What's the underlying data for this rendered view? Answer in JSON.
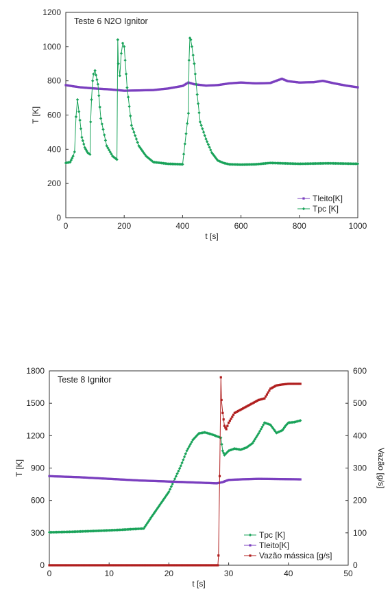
{
  "chart_data": [
    {
      "type": "line",
      "title": "Teste 6 N2O Ignitor",
      "xlabel": "t [s]",
      "ylabel": "T [K]",
      "xlim": [
        0,
        1000
      ],
      "ylim": [
        0,
        1200
      ],
      "xticks": [
        "0",
        "200",
        "400",
        "600",
        "800",
        "1000"
      ],
      "yticks": [
        "0",
        "200",
        "400",
        "600",
        "800",
        "1000",
        "1200"
      ],
      "legend_position": "bottom-right",
      "grid": false,
      "series": [
        {
          "name": "Tleito[K]",
          "color": "#7a3fbf",
          "marker": "square",
          "x": [
            0,
            25,
            50,
            100,
            150,
            200,
            250,
            300,
            350,
            400,
            420,
            440,
            480,
            520,
            560,
            600,
            650,
            700,
            740,
            760,
            800,
            850,
            880,
            920,
            960,
            1000
          ],
          "y": [
            775,
            768,
            762,
            755,
            750,
            742,
            744,
            746,
            755,
            770,
            790,
            780,
            772,
            775,
            785,
            790,
            785,
            787,
            812,
            798,
            790,
            792,
            800,
            785,
            772,
            762
          ]
        },
        {
          "name": "Tpc [K]",
          "color": "#1aa35a",
          "marker": "diamond",
          "x": [
            0,
            15,
            25,
            30,
            35,
            40,
            45,
            55,
            65,
            75,
            83,
            85,
            88,
            92,
            95,
            100,
            110,
            120,
            140,
            160,
            175,
            178,
            180,
            185,
            190,
            195,
            200,
            210,
            225,
            250,
            275,
            300,
            350,
            400,
            420,
            422,
            425,
            428,
            432,
            440,
            450,
            460,
            480,
            500,
            520,
            540,
            560,
            600,
            650,
            700,
            800,
            900,
            1000
          ],
          "y": [
            320,
            325,
            360,
            385,
            590,
            690,
            620,
            470,
            410,
            380,
            370,
            560,
            690,
            800,
            840,
            860,
            780,
            580,
            420,
            360,
            340,
            1040,
            900,
            830,
            960,
            1020,
            1000,
            760,
            540,
            420,
            360,
            325,
            315,
            312,
            610,
            920,
            1050,
            1040,
            1000,
            900,
            720,
            560,
            460,
            380,
            335,
            320,
            312,
            310,
            312,
            320,
            315,
            318,
            315
          ]
        }
      ]
    },
    {
      "type": "line",
      "title": "Teste 8 Ignitor",
      "xlabel": "t [s]",
      "ylabel": "T [K]",
      "y2label": "Vazão [g/s]",
      "xlim": [
        0,
        50
      ],
      "ylim": [
        0,
        1800
      ],
      "y2lim": [
        0,
        600
      ],
      "xticks": [
        "0",
        "10",
        "20",
        "30",
        "40",
        "50"
      ],
      "yticks": [
        "0",
        "300",
        "600",
        "900",
        "1200",
        "1500",
        "1800"
      ],
      "y2ticks": [
        "0",
        "100",
        "200",
        "300",
        "400",
        "500",
        "600"
      ],
      "legend_position": "bottom-right",
      "grid": false,
      "series": [
        {
          "name": "Tpc [K]",
          "axis": "left",
          "color": "#1aa35a",
          "marker": "diamond",
          "x": [
            0,
            4,
            8,
            12,
            15.8,
            17,
            18.5,
            20,
            21,
            22,
            23,
            24,
            25,
            26,
            27,
            28,
            28.7,
            29,
            29.3,
            30,
            31,
            32,
            33,
            34,
            35,
            36,
            37,
            38,
            39,
            39.5,
            40,
            41,
            42
          ],
          "y": [
            305,
            310,
            318,
            328,
            340,
            440,
            560,
            680,
            800,
            920,
            1060,
            1160,
            1220,
            1230,
            1215,
            1195,
            1180,
            1060,
            1020,
            1060,
            1080,
            1070,
            1090,
            1130,
            1220,
            1320,
            1300,
            1225,
            1250,
            1290,
            1320,
            1325,
            1340
          ]
        },
        {
          "name": "Tleito[K]",
          "axis": "left",
          "color": "#7a3fbf",
          "marker": "square",
          "x": [
            0,
            5,
            10,
            15,
            20,
            25,
            28,
            29,
            30,
            32,
            35,
            38,
            42
          ],
          "y": [
            825,
            815,
            800,
            785,
            775,
            765,
            758,
            770,
            790,
            795,
            800,
            798,
            795
          ]
        },
        {
          "name": "Vazão mássica [g/s]",
          "axis": "right",
          "color": "#b01e1e",
          "marker": "square",
          "x": [
            0,
            10,
            20,
            28.2,
            28.3,
            28.5,
            28.7,
            28.8,
            29,
            29.3,
            29.6,
            30,
            31,
            32,
            33,
            34,
            35,
            36,
            37,
            38,
            39,
            40,
            41,
            42
          ],
          "y": [
            0,
            0,
            0,
            0,
            30,
            275,
            580,
            510,
            470,
            430,
            420,
            440,
            470,
            480,
            490,
            500,
            510,
            515,
            545,
            555,
            558,
            560,
            560,
            560
          ]
        }
      ]
    }
  ]
}
